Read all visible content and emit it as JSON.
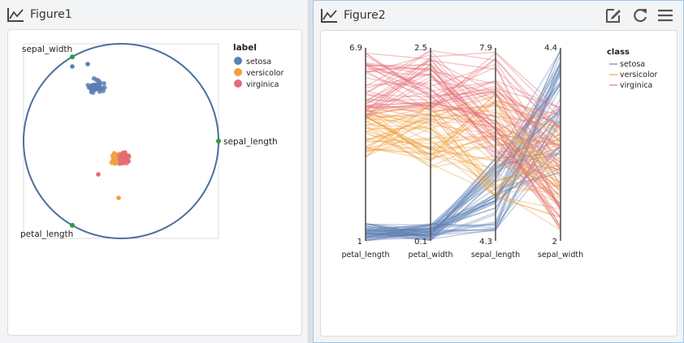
{
  "figure1": {
    "title": "Figure1",
    "chart_data": {
      "type": "scatter",
      "anchors": [
        "sepal_width",
        "sepal_length",
        "petal_length"
      ],
      "legend_title": "label",
      "legend_position": "top-right",
      "series": [
        {
          "name": "setosa",
          "color": "#5b7fb4"
        },
        {
          "name": "versicolor",
          "color": "#f0a040"
        },
        {
          "name": "virginica",
          "color": "#e46c74"
        }
      ]
    }
  },
  "figure2": {
    "title": "Figure2",
    "chart_data": {
      "type": "line",
      "axes": [
        {
          "name": "petal_length",
          "min": "1",
          "max": "6.9"
        },
        {
          "name": "petal_width",
          "min": "0.1",
          "max": "2.5"
        },
        {
          "name": "sepal_length",
          "min": "4.3",
          "max": "7.9"
        },
        {
          "name": "sepal_width",
          "min": "2",
          "max": "4.4"
        }
      ],
      "legend_title": "class",
      "legend_position": "top-right",
      "series": [
        {
          "name": "setosa",
          "color": "#5b7fb4"
        },
        {
          "name": "versicolor",
          "color": "#f0a040"
        },
        {
          "name": "virginica",
          "color": "#e46c74"
        }
      ]
    }
  }
}
